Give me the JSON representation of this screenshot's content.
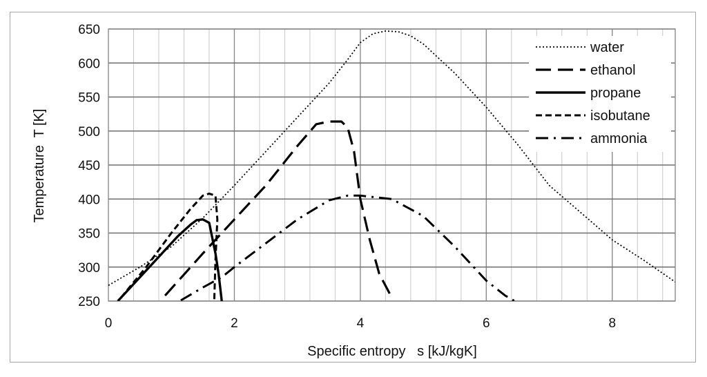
{
  "chart_data": {
    "type": "line",
    "title": "",
    "xlabel": "Specific entropy   s [kJ/kgK]",
    "ylabel": "Temperature  T [K]",
    "xlim": [
      0,
      9
    ],
    "ylim": [
      250,
      650
    ],
    "x_ticks": [
      0,
      2,
      4,
      6,
      8
    ],
    "y_ticks": [
      250,
      300,
      350,
      400,
      450,
      500,
      550,
      600,
      650
    ],
    "x_minor_step": 0.4,
    "y_major_step": 50,
    "grid": true,
    "legend_position": "top-right",
    "series": [
      {
        "name": "water",
        "line_style": "dotted",
        "points": [
          [
            0.0,
            273
          ],
          [
            0.5,
            300
          ],
          [
            1.0,
            330
          ],
          [
            1.5,
            372
          ],
          [
            2.0,
            420
          ],
          [
            2.5,
            470
          ],
          [
            3.0,
            520
          ],
          [
            3.5,
            570
          ],
          [
            3.8,
            605
          ],
          [
            4.0,
            630
          ],
          [
            4.2,
            643
          ],
          [
            4.4,
            647
          ],
          [
            4.6,
            646
          ],
          [
            4.8,
            640
          ],
          [
            5.0,
            628
          ],
          [
            5.5,
            585
          ],
          [
            6.0,
            535
          ],
          [
            6.5,
            480
          ],
          [
            7.0,
            420
          ],
          [
            7.5,
            380
          ],
          [
            8.0,
            340
          ],
          [
            8.5,
            310
          ],
          [
            9.0,
            278
          ]
        ]
      },
      {
        "name": "ethanol",
        "line_style": "long-dash",
        "points": [
          [
            0.9,
            258
          ],
          [
            1.5,
            320
          ],
          [
            2.0,
            370
          ],
          [
            2.5,
            420
          ],
          [
            3.0,
            478
          ],
          [
            3.3,
            510
          ],
          [
            3.5,
            514
          ],
          [
            3.7,
            514
          ],
          [
            3.8,
            505
          ],
          [
            3.9,
            470
          ],
          [
            4.0,
            400
          ],
          [
            4.15,
            340
          ],
          [
            4.3,
            290
          ],
          [
            4.5,
            255
          ]
        ]
      },
      {
        "name": "propane",
        "line_style": "solid",
        "points": [
          [
            0.15,
            250
          ],
          [
            0.4,
            275
          ],
          [
            0.8,
            315
          ],
          [
            1.1,
            345
          ],
          [
            1.3,
            362
          ],
          [
            1.4,
            369
          ],
          [
            1.5,
            370
          ],
          [
            1.6,
            365
          ],
          [
            1.7,
            320
          ],
          [
            1.75,
            290
          ],
          [
            1.8,
            250
          ]
        ]
      },
      {
        "name": "isobutane",
        "line_style": "dashed",
        "points": [
          [
            0.2,
            255
          ],
          [
            0.6,
            300
          ],
          [
            1.0,
            350
          ],
          [
            1.3,
            385
          ],
          [
            1.5,
            405
          ],
          [
            1.6,
            408
          ],
          [
            1.7,
            405
          ],
          [
            1.73,
            370
          ],
          [
            1.7,
            310
          ],
          [
            1.68,
            250
          ]
        ]
      },
      {
        "name": "ammonia",
        "line_style": "dash-dot",
        "points": [
          [
            1.15,
            251
          ],
          [
            1.5,
            270
          ],
          [
            1.8,
            285
          ],
          [
            2.0,
            300
          ],
          [
            2.5,
            335
          ],
          [
            3.0,
            370
          ],
          [
            3.5,
            398
          ],
          [
            3.8,
            405
          ],
          [
            4.0,
            405
          ],
          [
            4.5,
            400
          ],
          [
            5.0,
            375
          ],
          [
            5.5,
            330
          ],
          [
            6.0,
            280
          ],
          [
            6.3,
            258
          ],
          [
            6.45,
            250
          ]
        ]
      }
    ]
  }
}
